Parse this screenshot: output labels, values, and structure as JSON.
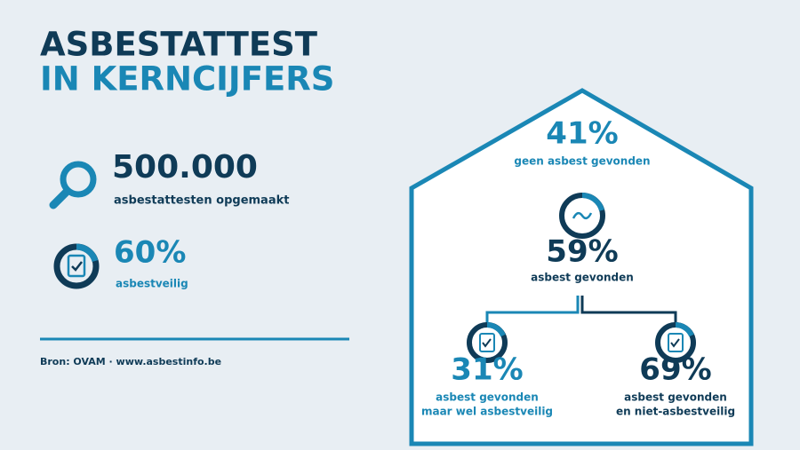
{
  "header": {
    "title_line1": "ASBESTATTEST",
    "title_line2": "IN KERNCIJFERS"
  },
  "stats": [
    {
      "value": "500.000",
      "label": "asbestattesten opgemaakt"
    },
    {
      "value": "60%",
      "label": "asbestveilig"
    }
  ],
  "source": "Bron: OVAM · www.asbestinfo.be",
  "house": {
    "top": {
      "value": "41%",
      "label": "geen asbest gevonden"
    },
    "middle": {
      "value": "59%",
      "label": "asbest gevonden"
    },
    "left": {
      "value": "31%",
      "label_line1": "asbest gevonden",
      "label_line2": "maar wel asbestveilig"
    },
    "right": {
      "value": "69%",
      "label_line1": "asbest gevonden",
      "label_line2": "en niet-asbestveilig"
    }
  }
}
